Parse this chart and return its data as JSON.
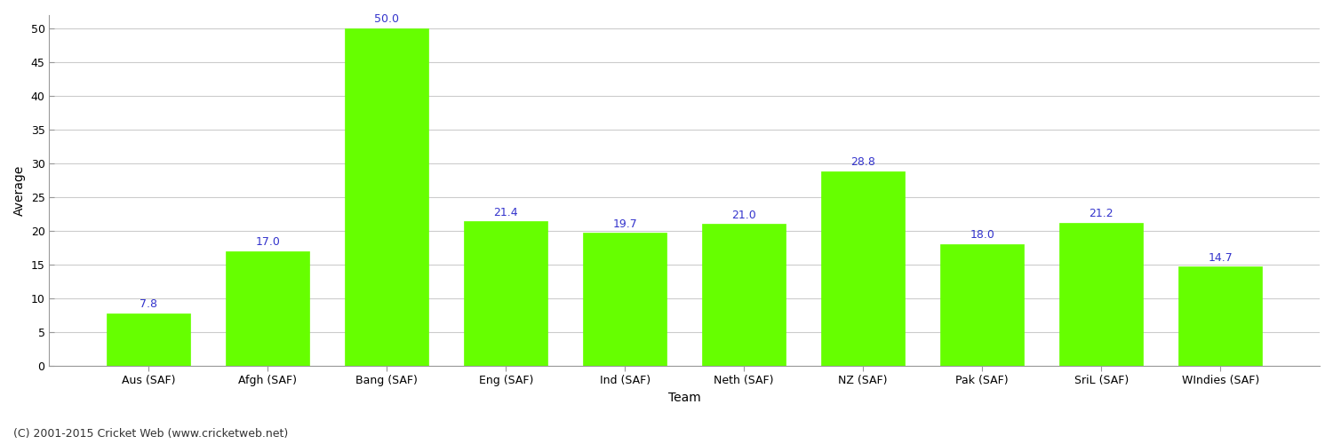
{
  "categories": [
    "Aus (SAF)",
    "Afgh (SAF)",
    "Bang (SAF)",
    "Eng (SAF)",
    "Ind (SAF)",
    "Neth (SAF)",
    "NZ (SAF)",
    "Pak (SAF)",
    "SriL (SAF)",
    "WIndies (SAF)"
  ],
  "values": [
    7.8,
    17.0,
    50.0,
    21.4,
    19.7,
    21.0,
    28.8,
    18.0,
    21.2,
    14.7
  ],
  "bar_color": "#66ff00",
  "bar_edge_color": "#66ff00",
  "xlabel": "Team",
  "ylabel": "Average",
  "ylim": [
    0,
    52
  ],
  "yticks": [
    0,
    5,
    10,
    15,
    20,
    25,
    30,
    35,
    40,
    45,
    50
  ],
  "label_color": "#3333cc",
  "label_fontsize": 9,
  "axis_label_fontsize": 10,
  "tick_fontsize": 9,
  "background_color": "#ffffff",
  "grid_color": "#cccccc",
  "footer_text": "(C) 2001-2015 Cricket Web (www.cricketweb.net)",
  "footer_fontsize": 9,
  "footer_color": "#333333",
  "spine_color": "#999999"
}
